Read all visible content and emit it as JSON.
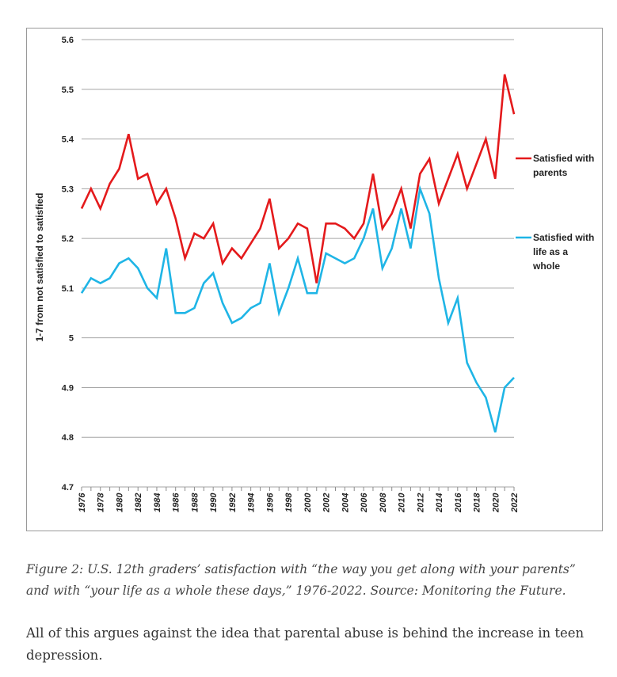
{
  "chart_data": {
    "type": "line",
    "title": "",
    "xlabel": "",
    "ylabel": "1-7 from not satisfied to satisfied",
    "ylim": [
      4.7,
      5.6
    ],
    "yticks": [
      "4.7",
      "4.8",
      "4.9",
      "5",
      "5.1",
      "5.2",
      "5.3",
      "5.4",
      "5.5",
      "5.6"
    ],
    "xticks": [
      "1976",
      "1978",
      "1980",
      "1982",
      "1984",
      "1986",
      "1988",
      "1990",
      "1992",
      "1994",
      "1996",
      "1998",
      "2000",
      "2002",
      "2004",
      "2006",
      "2008",
      "2010",
      "2012",
      "2014",
      "2016",
      "2018",
      "2020",
      "2022"
    ],
    "grid": true,
    "legend_position": "right",
    "x": [
      1976,
      1977,
      1978,
      1979,
      1980,
      1981,
      1982,
      1983,
      1984,
      1985,
      1986,
      1987,
      1988,
      1989,
      1990,
      1991,
      1992,
      1993,
      1994,
      1995,
      1996,
      1997,
      1998,
      1999,
      2000,
      2001,
      2002,
      2003,
      2004,
      2005,
      2006,
      2007,
      2008,
      2009,
      2010,
      2011,
      2012,
      2013,
      2014,
      2015,
      2016,
      2017,
      2018,
      2019,
      2020,
      2021,
      2022
    ],
    "series": [
      {
        "name": "Satisfied with parents",
        "color": "#e41a1c",
        "values": [
          5.26,
          5.3,
          5.26,
          5.31,
          5.34,
          5.41,
          5.32,
          5.33,
          5.27,
          5.3,
          5.24,
          5.16,
          5.21,
          5.2,
          5.23,
          5.15,
          5.18,
          5.16,
          5.19,
          5.22,
          5.28,
          5.18,
          5.2,
          5.23,
          5.22,
          5.11,
          5.23,
          5.23,
          5.22,
          5.2,
          5.23,
          5.33,
          5.22,
          5.25,
          5.3,
          5.22,
          5.33,
          5.36,
          5.27,
          5.32,
          5.37,
          5.3,
          5.35,
          5.4,
          5.32,
          5.53,
          5.45
        ]
      },
      {
        "name": "Satisfied with life as a whole",
        "color": "#1fb5e6",
        "values": [
          5.09,
          5.12,
          5.11,
          5.12,
          5.15,
          5.16,
          5.14,
          5.1,
          5.08,
          5.18,
          5.05,
          5.05,
          5.06,
          5.11,
          5.13,
          5.07,
          5.03,
          5.04,
          5.06,
          5.07,
          5.15,
          5.05,
          5.1,
          5.16,
          5.09,
          5.09,
          5.17,
          5.16,
          5.15,
          5.16,
          5.2,
          5.26,
          5.14,
          5.18,
          5.26,
          5.18,
          5.3,
          5.25,
          5.12,
          5.03,
          5.08,
          4.95,
          4.91,
          4.88,
          4.81,
          4.9,
          4.92
        ]
      }
    ],
    "legend": [
      {
        "lines": [
          "Satisfied with",
          "parents"
        ]
      },
      {
        "lines": [
          "Satisfied with",
          "life as a",
          "whole"
        ]
      }
    ]
  },
  "caption": "Figure 2: U.S. 12th graders’ satisfaction with “the way you get along with your parents” and with “your life as a whole these days,” 1976-2022. Source: Monitoring the Future.",
  "body_text": "All of this argues against the idea that parental abuse is behind the increase in teen depression."
}
